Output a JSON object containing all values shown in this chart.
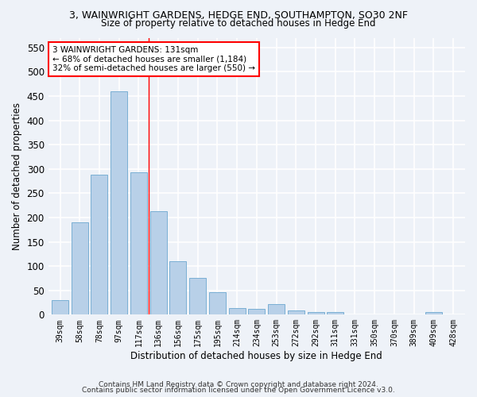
{
  "title": "3, WAINWRIGHT GARDENS, HEDGE END, SOUTHAMPTON, SO30 2NF",
  "subtitle": "Size of property relative to detached houses in Hedge End",
  "xlabel": "Distribution of detached houses by size in Hedge End",
  "ylabel": "Number of detached properties",
  "categories": [
    "39sqm",
    "58sqm",
    "78sqm",
    "97sqm",
    "117sqm",
    "136sqm",
    "156sqm",
    "175sqm",
    "195sqm",
    "214sqm",
    "234sqm",
    "253sqm",
    "272sqm",
    "292sqm",
    "311sqm",
    "331sqm",
    "350sqm",
    "370sqm",
    "389sqm",
    "409sqm",
    "428sqm"
  ],
  "values": [
    30,
    190,
    288,
    460,
    293,
    213,
    110,
    75,
    46,
    13,
    12,
    21,
    9,
    5,
    5,
    0,
    0,
    0,
    0,
    5,
    0
  ],
  "bar_color": "#b8d0e8",
  "bar_edge_color": "#7aafd4",
  "vline_x": 4.5,
  "vline_color": "red",
  "annotation_text": "3 WAINWRIGHT GARDENS: 131sqm\n← 68% of detached houses are smaller (1,184)\n32% of semi-detached houses are larger (550) →",
  "annotation_box_color": "white",
  "annotation_box_edge": "red",
  "ylim": [
    0,
    570
  ],
  "yticks": [
    0,
    50,
    100,
    150,
    200,
    250,
    300,
    350,
    400,
    450,
    500,
    550
  ],
  "footer1": "Contains HM Land Registry data © Crown copyright and database right 2024.",
  "footer2": "Contains public sector information licensed under the Open Government Licence v3.0.",
  "bg_color": "#eef2f8",
  "grid_color": "white"
}
